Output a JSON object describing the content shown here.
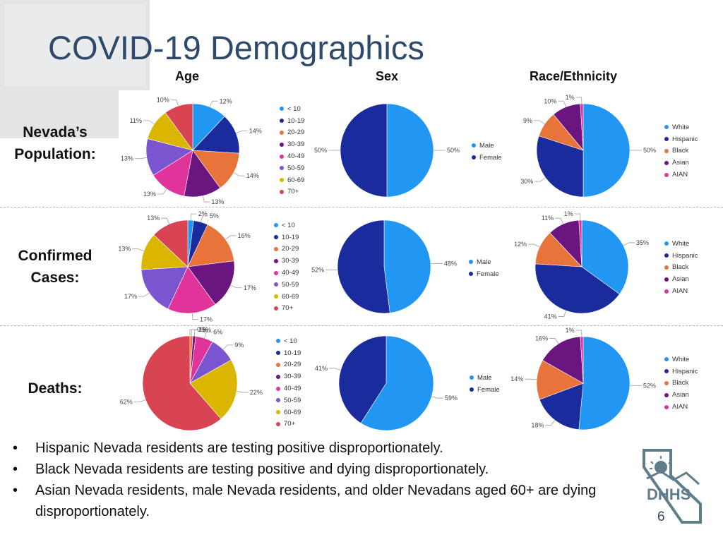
{
  "slide": {
    "title": "COVID-19 Demographics",
    "page_number": "6"
  },
  "columns": [
    "Age",
    "Sex",
    "Race/Ethnicity"
  ],
  "rows": [
    "Nevada’s\nPopulation:",
    "Confirmed\nCases:",
    "Deaths:"
  ],
  "legends": {
    "age": [
      "< 10",
      "10-19",
      "20-29",
      "30-39",
      "40-49",
      "50-59",
      "60-69",
      "70+"
    ],
    "sex": [
      "Male",
      "Female"
    ],
    "race": [
      "White",
      "Hispanic",
      "Black",
      "Asian",
      "AIAN"
    ]
  },
  "colors": {
    "age": [
      "#2196F3",
      "#1a2b9e",
      "#e8743b",
      "#6a1580",
      "#e0349a",
      "#7b55cf",
      "#dbb600",
      "#d94452"
    ],
    "sex": [
      "#2196F3",
      "#1a2b9e"
    ],
    "race": [
      "#2196F3",
      "#1a2b9e",
      "#e8743b",
      "#6a1580",
      "#e0349a"
    ],
    "title": "#2e4a6b"
  },
  "bullets": [
    "Hispanic Nevada residents are testing positive disproportionately.",
    "Black Nevada residents are testing positive and dying disproportionately.",
    "Asian Nevada residents, male Nevada residents, and older Nevadans aged 60+ are dying disproportionately."
  ],
  "logo": {
    "text": "DHHS"
  },
  "chart_data": [
    {
      "type": "pie",
      "row": "Nevada’s Population:",
      "column": "Age",
      "categories": [
        "< 10",
        "10-19",
        "20-29",
        "30-39",
        "40-49",
        "50-59",
        "60-69",
        "70+"
      ],
      "values": [
        12,
        14,
        14,
        13,
        13,
        13,
        11,
        10
      ],
      "data_labels": [
        "12%",
        "14%",
        "14%",
        "13%",
        "13%",
        "13%",
        "11%",
        "10%"
      ]
    },
    {
      "type": "pie",
      "row": "Nevada’s Population:",
      "column": "Sex",
      "categories": [
        "Male",
        "Female"
      ],
      "values": [
        50,
        50
      ],
      "data_labels": [
        "50%",
        "50%"
      ]
    },
    {
      "type": "pie",
      "row": "Nevada’s Population:",
      "column": "Race/Ethnicity",
      "categories": [
        "White",
        "Hispanic",
        "Black",
        "Asian",
        "AIAN"
      ],
      "values": [
        50,
        30,
        9,
        10,
        1
      ],
      "data_labels": [
        "50%",
        "30%",
        "9%",
        "10%",
        "1%"
      ]
    },
    {
      "type": "pie",
      "row": "Confirmed Cases:",
      "column": "Age",
      "categories": [
        "< 10",
        "10-19",
        "20-29",
        "30-39",
        "40-49",
        "50-59",
        "60-69",
        "70+"
      ],
      "values": [
        2,
        5,
        16,
        17,
        17,
        17,
        13,
        13
      ],
      "data_labels": [
        "2%",
        "5%",
        "16%",
        "17%",
        "17%",
        "17%",
        "13%",
        "13%"
      ]
    },
    {
      "type": "pie",
      "row": "Confirmed Cases:",
      "column": "Sex",
      "categories": [
        "Male",
        "Female"
      ],
      "values": [
        48,
        52
      ],
      "data_labels": [
        "48%",
        "52%"
      ]
    },
    {
      "type": "pie",
      "row": "Confirmed Cases:",
      "column": "Race/Ethnicity",
      "categories": [
        "White",
        "Hispanic",
        "Black",
        "Asian",
        "AIAN"
      ],
      "values": [
        35,
        41,
        12,
        11,
        1
      ],
      "data_labels": [
        "35%",
        "41%",
        "12%",
        "11%",
        "1%"
      ]
    },
    {
      "type": "pie",
      "row": "Deaths:",
      "column": "Age",
      "categories": [
        "< 10",
        "10-19",
        "20-29",
        "30-39",
        "40-49",
        "50-59",
        "60-69",
        "70+"
      ],
      "values": [
        0,
        0,
        1,
        1,
        6,
        9,
        22,
        62
      ],
      "data_labels": [
        "0%",
        "",
        "1%",
        "1%",
        "6%",
        "9%",
        "22%",
        "62%"
      ]
    },
    {
      "type": "pie",
      "row": "Deaths:",
      "column": "Sex",
      "categories": [
        "Male",
        "Female"
      ],
      "values": [
        59,
        41
      ],
      "data_labels": [
        "59%",
        "41%"
      ]
    },
    {
      "type": "pie",
      "row": "Deaths:",
      "column": "Race/Ethnicity",
      "categories": [
        "White",
        "Hispanic",
        "Black",
        "Asian",
        "AIAN"
      ],
      "values": [
        52,
        18,
        14,
        16,
        1
      ],
      "data_labels": [
        "52%",
        "18%",
        "14%",
        "16%",
        "1%"
      ]
    }
  ]
}
